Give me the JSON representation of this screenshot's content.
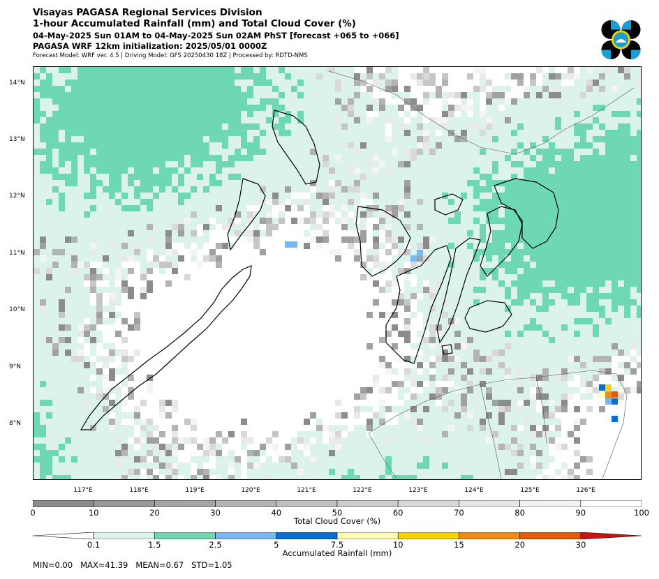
{
  "header": {
    "line1": "Visayas PAGASA Regional Services Division",
    "line2": "1-hour Accumulated Rainfall (mm) and Total Cloud Cover (%)",
    "line3": "04-May-2025 Sun 01AM to 04-May-2025 Sun 02AM PhST [forecast +065 to +066]",
    "line4": "PAGASA WRF 12km initialization: 2025/05/01 0000Z",
    "line5": "Forecast Model: WRF ver. 4.5 | Driving Model: GFS 20250430 18Z | Processed by: RDTD-NMS"
  },
  "map": {
    "lat_labels": [
      "14°N",
      "13°N",
      "12°N",
      "11°N",
      "10°N",
      "9°N",
      "8°N"
    ],
    "lon_labels": [
      "117°E",
      "118°E",
      "119°E",
      "120°E",
      "121°E",
      "122°E",
      "123°E",
      "124°E",
      "125°E",
      "126°E"
    ],
    "lon_range": [
      116.0,
      126.9
    ],
    "lat_range": [
      7.0,
      14.3
    ]
  },
  "cloud_legend": {
    "title": "Total Cloud Cover (%)",
    "ticks": [
      "0",
      "10",
      "20",
      "30",
      "40",
      "50",
      "60",
      "70",
      "80",
      "90",
      "100"
    ],
    "colors": [
      "#8c8c8c",
      "#999999",
      "#a6a6a6",
      "#b3b3b3",
      "#bfbfbf",
      "#cccccc",
      "#d9d9d9",
      "#e6e6e6",
      "#f2f2f2",
      "#ffffff"
    ]
  },
  "rain_legend": {
    "title": "Accumulated Rainfall (mm)",
    "ticks": [
      "0.1",
      "1.5",
      "2.5",
      "5",
      "7.5",
      "10",
      "15",
      "20",
      "30"
    ],
    "under_color": "#ffffff",
    "colors": [
      "#dcf3ec",
      "#6ed8b4",
      "#78b8f0",
      "#0a6ed2",
      "#fffab4",
      "#f5d20a",
      "#f08c14",
      "#e65a0a"
    ],
    "over_color": "#c81414"
  },
  "stats": {
    "text": "MIN=0.00   MAX=41.39   MEAN=0.67   STD=1.05"
  }
}
